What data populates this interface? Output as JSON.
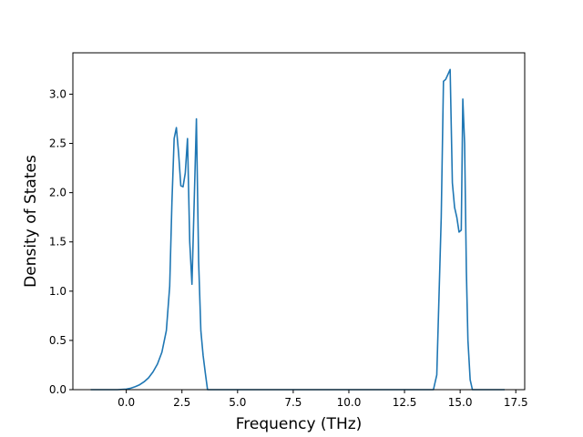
{
  "chart_data": {
    "type": "line",
    "title": "",
    "xlabel": "Frequency (THz)",
    "ylabel": "Density of States",
    "xlim": [
      -2.4,
      17.9
    ],
    "ylim": [
      0.0,
      3.42
    ],
    "grid": false,
    "legend": "none",
    "line_color": "#1f77b4",
    "x_ticks": [
      {
        "value": 0.0,
        "label": "0.0"
      },
      {
        "value": 2.5,
        "label": "2.5"
      },
      {
        "value": 5.0,
        "label": "5.0"
      },
      {
        "value": 7.5,
        "label": "7.5"
      },
      {
        "value": 10.0,
        "label": "10.0"
      },
      {
        "value": 12.5,
        "label": "12.5"
      },
      {
        "value": 15.0,
        "label": "15.0"
      },
      {
        "value": 17.5,
        "label": "17.5"
      }
    ],
    "y_ticks": [
      {
        "value": 0.0,
        "label": "0.0"
      },
      {
        "value": 0.5,
        "label": "0.5"
      },
      {
        "value": 1.0,
        "label": "1.0"
      },
      {
        "value": 1.5,
        "label": "1.5"
      },
      {
        "value": 2.0,
        "label": "2.0"
      },
      {
        "value": 2.5,
        "label": "2.5"
      },
      {
        "value": 3.0,
        "label": "3.0"
      }
    ],
    "series": [
      {
        "x": [
          -1.6,
          -0.4,
          0.0,
          0.2,
          0.4,
          0.6,
          0.8,
          1.0,
          1.2,
          1.4,
          1.6,
          1.8,
          1.95,
          2.05,
          2.15,
          2.25,
          2.35,
          2.45,
          2.55,
          2.65,
          2.75,
          2.85,
          2.95,
          3.05,
          3.15,
          3.25,
          3.35,
          3.45,
          3.55,
          3.65,
          4.0,
          8.0,
          13.8,
          13.95,
          14.05,
          14.15,
          14.25,
          14.35,
          14.45,
          14.55,
          14.65,
          14.75,
          14.85,
          14.95,
          15.05,
          15.12,
          15.2,
          15.28,
          15.35,
          15.45,
          15.55,
          16.5,
          17.0
        ],
        "y": [
          0.0,
          0.0,
          0.005,
          0.015,
          0.03,
          0.05,
          0.08,
          0.12,
          0.18,
          0.26,
          0.38,
          0.6,
          1.05,
          1.9,
          2.55,
          2.66,
          2.4,
          2.07,
          2.06,
          2.2,
          2.55,
          1.5,
          1.07,
          1.9,
          2.75,
          1.3,
          0.6,
          0.35,
          0.17,
          0.0,
          0.0,
          0.0,
          0.0,
          0.15,
          0.95,
          1.75,
          3.13,
          3.15,
          3.2,
          3.25,
          2.1,
          1.85,
          1.75,
          1.6,
          1.62,
          2.95,
          2.5,
          1.2,
          0.5,
          0.1,
          0.0,
          0.0,
          0.0
        ]
      }
    ]
  }
}
